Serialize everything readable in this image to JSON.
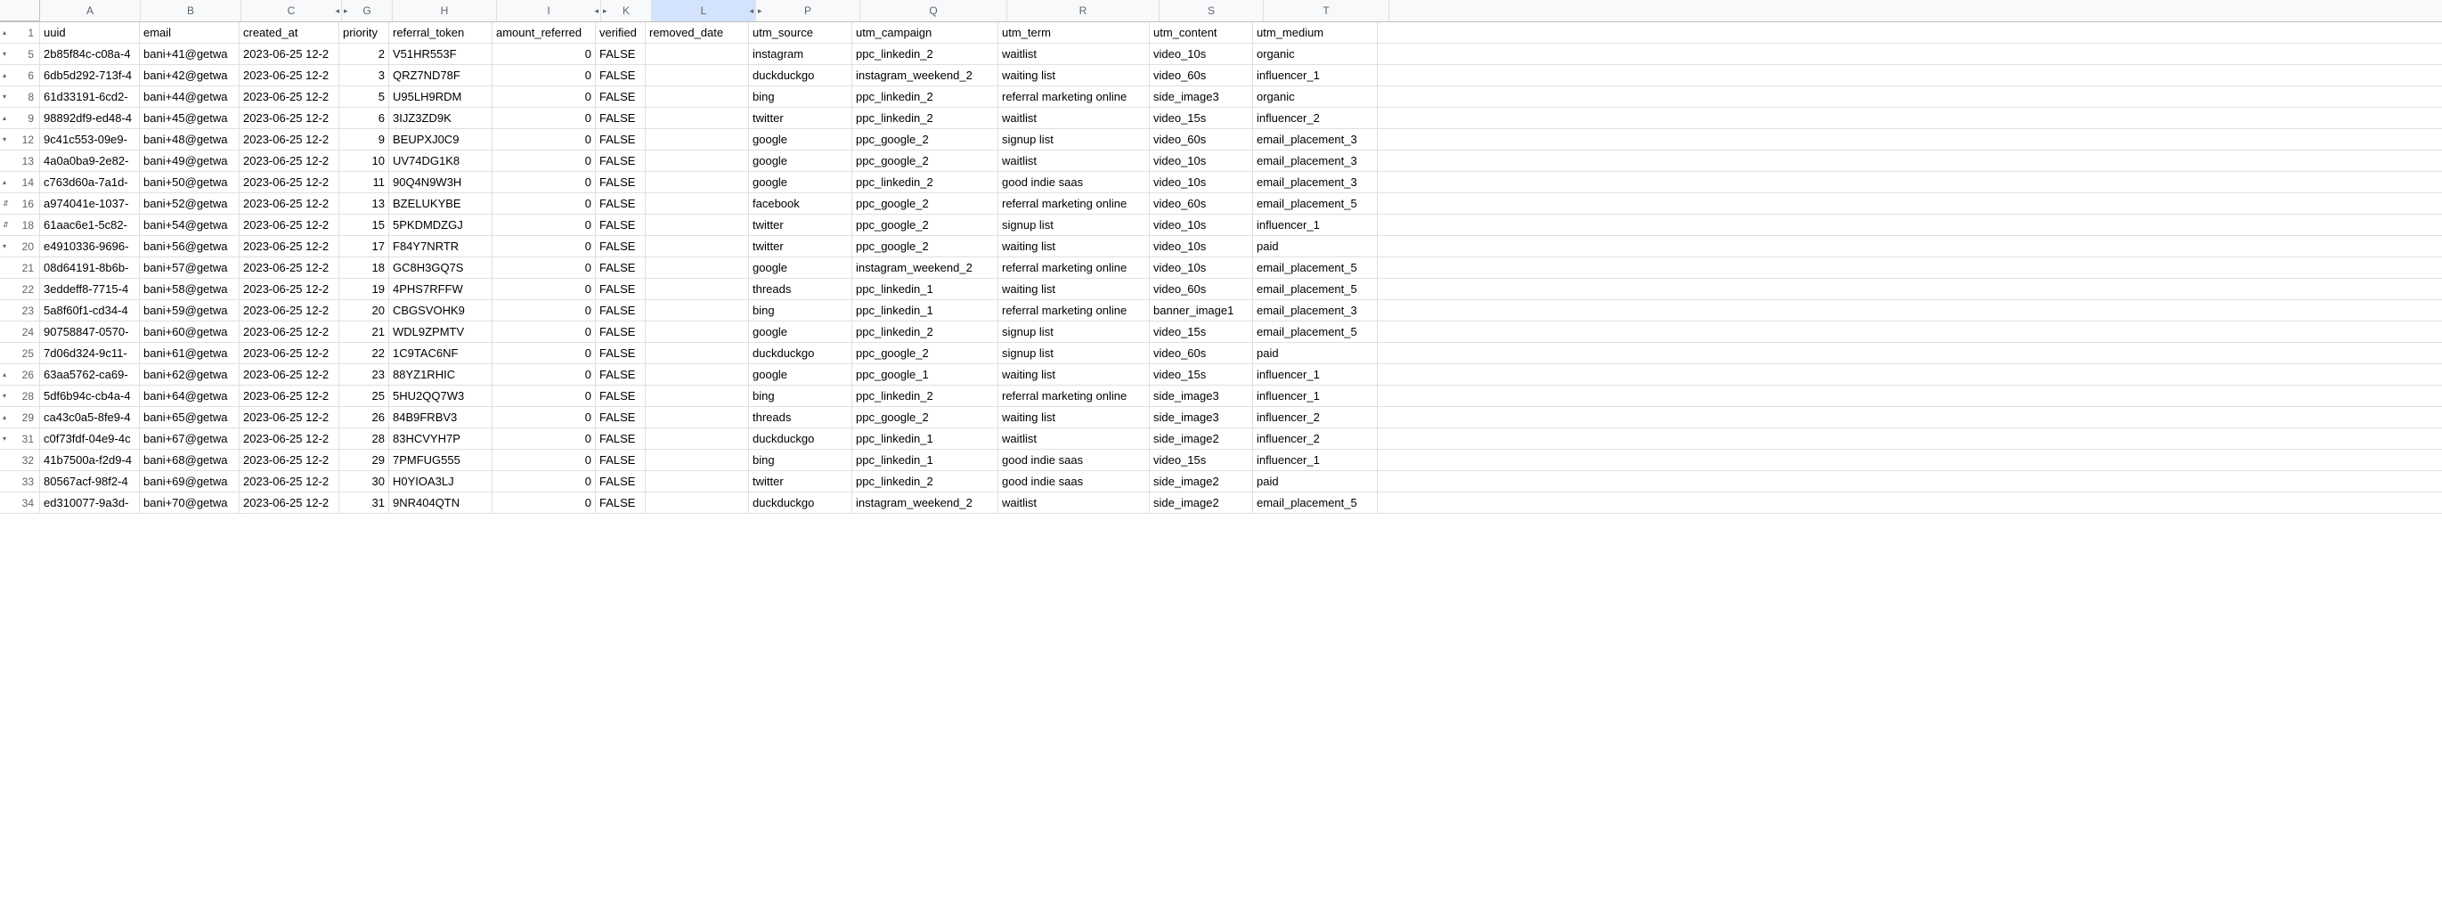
{
  "colors": {
    "header_bg": "#f8f9fa",
    "selected_bg": "#d3e3fd",
    "border": "#e0e0e0",
    "text_muted": "#5f6368"
  },
  "columns": [
    {
      "letter": "A",
      "width": 112,
      "collapse_right": false,
      "collapse_left": false
    },
    {
      "letter": "B",
      "width": 112,
      "collapse_right": false,
      "collapse_left": false
    },
    {
      "letter": "C",
      "width": 112,
      "collapse_right": true,
      "collapse_left": false
    },
    {
      "letter": "G",
      "width": 56,
      "collapse_right": false,
      "collapse_left": true
    },
    {
      "letter": "H",
      "width": 116,
      "collapse_right": false,
      "collapse_left": false
    },
    {
      "letter": "I",
      "width": 116,
      "collapse_right": true,
      "collapse_left": false
    },
    {
      "letter": "K",
      "width": 56,
      "collapse_right": false,
      "collapse_left": true
    },
    {
      "letter": "L",
      "width": 116,
      "collapse_right": true,
      "collapse_left": false,
      "selected": true
    },
    {
      "letter": "P",
      "width": 116,
      "collapse_right": false,
      "collapse_left": true
    },
    {
      "letter": "Q",
      "width": 164,
      "collapse_right": false,
      "collapse_left": false
    },
    {
      "letter": "R",
      "width": 170,
      "collapse_right": false,
      "collapse_left": false
    },
    {
      "letter": "S",
      "width": 116,
      "collapse_right": false,
      "collapse_left": false
    },
    {
      "letter": "T",
      "width": 140,
      "collapse_right": false,
      "collapse_left": false
    }
  ],
  "header_row": {
    "num": 1,
    "marker": "up",
    "A": "uuid",
    "B": "email",
    "C": "created_at",
    "G": "priority",
    "H": "referral_token",
    "I": "amount_referred",
    "K": "verified",
    "L": "removed_date",
    "P": "utm_source",
    "Q": "utm_campaign",
    "R": "utm_term",
    "S": "utm_content",
    "T": "utm_medium"
  },
  "rows": [
    {
      "num": 5,
      "marker": "down",
      "A": "2b85f84c-c08a-4",
      "B": "bani+41@getwa",
      "C": "2023-06-25 12-2",
      "G": 2,
      "H": "V51HR553F",
      "I": 0,
      "K": "FALSE",
      "L": "",
      "P": "instagram",
      "Q": "ppc_linkedin_2",
      "R": "waitlist",
      "S": "video_10s",
      "T": "organic"
    },
    {
      "num": 6,
      "marker": "up",
      "A": "6db5d292-713f-4",
      "B": "bani+42@getwa",
      "C": "2023-06-25 12-2",
      "G": 3,
      "H": "QRZ7ND78F",
      "I": 0,
      "K": "FALSE",
      "L": "",
      "P": "duckduckgo",
      "Q": "instagram_weekend_2",
      "R": "waiting list",
      "S": "video_60s",
      "T": "influencer_1"
    },
    {
      "num": 8,
      "marker": "down",
      "A": "61d33191-6cd2-",
      "B": "bani+44@getwa",
      "C": "2023-06-25 12-2",
      "G": 5,
      "H": "U95LH9RDM",
      "I": 0,
      "K": "FALSE",
      "L": "",
      "P": "bing",
      "Q": "ppc_linkedin_2",
      "R": "referral marketing online",
      "S": "side_image3",
      "T": "organic"
    },
    {
      "num": 9,
      "marker": "up",
      "A": "98892df9-ed48-4",
      "B": "bani+45@getwa",
      "C": "2023-06-25 12-2",
      "G": 6,
      "H": "3IJZ3ZD9K",
      "I": 0,
      "K": "FALSE",
      "L": "",
      "P": "twitter",
      "Q": "ppc_linkedin_2",
      "R": "waitlist",
      "S": "video_15s",
      "T": "influencer_2"
    },
    {
      "num": 12,
      "marker": "down",
      "A": "9c41c553-09e9-",
      "B": "bani+48@getwa",
      "C": "2023-06-25 12-2",
      "G": 9,
      "H": "BEUPXJ0C9",
      "I": 0,
      "K": "FALSE",
      "L": "",
      "P": "google",
      "Q": "ppc_google_2",
      "R": "signup list",
      "S": "video_60s",
      "T": "email_placement_3"
    },
    {
      "num": 13,
      "marker": "",
      "A": "4a0a0ba9-2e82-",
      "B": "bani+49@getwa",
      "C": "2023-06-25 12-2",
      "G": 10,
      "H": "UV74DG1K8",
      "I": 0,
      "K": "FALSE",
      "L": "",
      "P": "google",
      "Q": "ppc_google_2",
      "R": "waitlist",
      "S": "video_10s",
      "T": "email_placement_3"
    },
    {
      "num": 14,
      "marker": "up",
      "A": "c763d60a-7a1d-",
      "B": "bani+50@getwa",
      "C": "2023-06-25 12-2",
      "G": 11,
      "H": "90Q4N9W3H",
      "I": 0,
      "K": "FALSE",
      "L": "",
      "P": "google",
      "Q": "ppc_linkedin_2",
      "R": "good indie saas",
      "S": "video_10s",
      "T": "email_placement_3"
    },
    {
      "num": 16,
      "marker": "both",
      "A": "a974041e-1037-",
      "B": "bani+52@getwa",
      "C": "2023-06-25 12-2",
      "G": 13,
      "H": "BZELUKYBE",
      "I": 0,
      "K": "FALSE",
      "L": "",
      "P": "facebook",
      "Q": "ppc_google_2",
      "R": "referral marketing online",
      "S": "video_60s",
      "T": "email_placement_5"
    },
    {
      "num": 18,
      "marker": "both",
      "A": "61aac6e1-5c82-",
      "B": "bani+54@getwa",
      "C": "2023-06-25 12-2",
      "G": 15,
      "H": "5PKDMDZGJ",
      "I": 0,
      "K": "FALSE",
      "L": "",
      "P": "twitter",
      "Q": "ppc_google_2",
      "R": "signup list",
      "S": "video_10s",
      "T": "influencer_1"
    },
    {
      "num": 20,
      "marker": "down",
      "A": "e4910336-9696-",
      "B": "bani+56@getwa",
      "C": "2023-06-25 12-2",
      "G": 17,
      "H": "F84Y7NRTR",
      "I": 0,
      "K": "FALSE",
      "L": "",
      "P": "twitter",
      "Q": "ppc_google_2",
      "R": "waiting list",
      "S": "video_10s",
      "T": "paid"
    },
    {
      "num": 21,
      "marker": "",
      "A": "08d64191-8b6b-",
      "B": "bani+57@getwa",
      "C": "2023-06-25 12-2",
      "G": 18,
      "H": "GC8H3GQ7S",
      "I": 0,
      "K": "FALSE",
      "L": "",
      "P": "google",
      "Q": "instagram_weekend_2",
      "R": "referral marketing online",
      "S": "video_10s",
      "T": "email_placement_5"
    },
    {
      "num": 22,
      "marker": "",
      "A": "3eddeff8-7715-4",
      "B": "bani+58@getwa",
      "C": "2023-06-25 12-2",
      "G": 19,
      "H": "4PHS7RFFW",
      "I": 0,
      "K": "FALSE",
      "L": "",
      "P": "threads",
      "Q": "ppc_linkedin_1",
      "R": "waiting list",
      "S": "video_60s",
      "T": "email_placement_5"
    },
    {
      "num": 23,
      "marker": "",
      "A": "5a8f60f1-cd34-4",
      "B": "bani+59@getwa",
      "C": "2023-06-25 12-2",
      "G": 20,
      "H": "CBGSVOHK9",
      "I": 0,
      "K": "FALSE",
      "L": "",
      "P": "bing",
      "Q": "ppc_linkedin_1",
      "R": "referral marketing online",
      "S": "banner_image1",
      "T": "email_placement_3"
    },
    {
      "num": 24,
      "marker": "",
      "A": "90758847-0570-",
      "B": "bani+60@getwa",
      "C": "2023-06-25 12-2",
      "G": 21,
      "H": "WDL9ZPMTV",
      "I": 0,
      "K": "FALSE",
      "L": "",
      "P": "google",
      "Q": "ppc_linkedin_2",
      "R": "signup list",
      "S": "video_15s",
      "T": "email_placement_5"
    },
    {
      "num": 25,
      "marker": "",
      "A": "7d06d324-9c11-",
      "B": "bani+61@getwa",
      "C": "2023-06-25 12-2",
      "G": 22,
      "H": "1C9TAC6NF",
      "I": 0,
      "K": "FALSE",
      "L": "",
      "P": "duckduckgo",
      "Q": "ppc_google_2",
      "R": "signup list",
      "S": "video_60s",
      "T": "paid"
    },
    {
      "num": 26,
      "marker": "up",
      "A": "63aa5762-ca69-",
      "B": "bani+62@getwa",
      "C": "2023-06-25 12-2",
      "G": 23,
      "H": "88YZ1RHIC",
      "I": 0,
      "K": "FALSE",
      "L": "",
      "P": "google",
      "Q": "ppc_google_1",
      "R": "waiting list",
      "S": "video_15s",
      "T": "influencer_1"
    },
    {
      "num": 28,
      "marker": "down",
      "A": "5df6b94c-cb4a-4",
      "B": "bani+64@getwa",
      "C": "2023-06-25 12-2",
      "G": 25,
      "H": "5HU2QQ7W3",
      "I": 0,
      "K": "FALSE",
      "L": "",
      "P": "bing",
      "Q": "ppc_linkedin_2",
      "R": "referral marketing online",
      "S": "side_image3",
      "T": "influencer_1"
    },
    {
      "num": 29,
      "marker": "up",
      "A": "ca43c0a5-8fe9-4",
      "B": "bani+65@getwa",
      "C": "2023-06-25 12-2",
      "G": 26,
      "H": "84B9FRBV3",
      "I": 0,
      "K": "FALSE",
      "L": "",
      "P": "threads",
      "Q": "ppc_google_2",
      "R": "waiting list",
      "S": "side_image3",
      "T": "influencer_2"
    },
    {
      "num": 31,
      "marker": "down",
      "A": "c0f73fdf-04e9-4c",
      "B": "bani+67@getwa",
      "C": "2023-06-25 12-2",
      "G": 28,
      "H": "83HCVYH7P",
      "I": 0,
      "K": "FALSE",
      "L": "",
      "P": "duckduckgo",
      "Q": "ppc_linkedin_1",
      "R": "waitlist",
      "S": "side_image2",
      "T": "influencer_2"
    },
    {
      "num": 32,
      "marker": "",
      "A": "41b7500a-f2d9-4",
      "B": "bani+68@getwa",
      "C": "2023-06-25 12-2",
      "G": 29,
      "H": "7PMFUG555",
      "I": 0,
      "K": "FALSE",
      "L": "",
      "P": "bing",
      "Q": "ppc_linkedin_1",
      "R": "good indie saas",
      "S": "video_15s",
      "T": "influencer_1"
    },
    {
      "num": 33,
      "marker": "",
      "A": "80567acf-98f2-4",
      "B": "bani+69@getwa",
      "C": "2023-06-25 12-2",
      "G": 30,
      "H": "H0YIOA3LJ",
      "I": 0,
      "K": "FALSE",
      "L": "",
      "P": "twitter",
      "Q": "ppc_linkedin_2",
      "R": "good indie saas",
      "S": "side_image2",
      "T": "paid"
    },
    {
      "num": 34,
      "marker": "",
      "A": "ed310077-9a3d-",
      "B": "bani+70@getwa",
      "C": "2023-06-25 12-2",
      "G": 31,
      "H": "9NR404QTN",
      "I": 0,
      "K": "FALSE",
      "L": "",
      "P": "duckduckgo",
      "Q": "instagram_weekend_2",
      "R": "waitlist",
      "S": "side_image2",
      "T": "email_placement_5"
    }
  ],
  "numeric_cols": [
    "G",
    "I"
  ]
}
